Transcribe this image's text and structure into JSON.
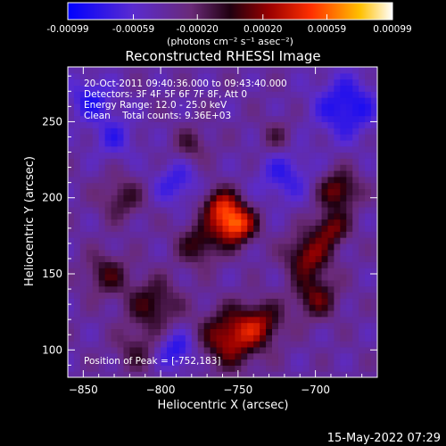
{
  "chart_data": {
    "type": "heatmap",
    "title": "Reconstructed RHESSI Image",
    "xlabel": "Heliocentric X (arcsec)",
    "ylabel": "Heliocentric Y (arcsec)",
    "xlim": [
      -860,
      -660
    ],
    "ylim": [
      82,
      286
    ],
    "x_ticks": [
      -850,
      -800,
      -750,
      -700
    ],
    "y_ticks": [
      100,
      150,
      200,
      250
    ],
    "colorbar": {
      "range": [
        -0.00099,
        0.00099
      ],
      "ticks": [
        "-0.00099",
        "-0.00059",
        "-0.00020",
        "0.00020",
        "0.00059",
        "0.00099"
      ],
      "colormap": "blue-purple-red-yellow-white",
      "units_label": "(photons cm⁻² s⁻¹ asec⁻²)"
    },
    "annotations": [
      "20-Oct-2011 09:40:36.000 to 09:43:40.000",
      "Detectors: 3F 4F 5F 6F 7F 8F, Att 0",
      "Energy Range: 12.0 - 25.0 keV",
      "Clean    Total counts: 9.36E+03"
    ],
    "peak_label": "Position of Peak = [-752,183]",
    "peak": [
      -752,
      183
    ],
    "sources": [
      {
        "x": -752,
        "y": 183,
        "sigma": 9,
        "amp": 0.00099
      },
      {
        "x": -762,
        "y": 196,
        "sigma": 8,
        "amp": 0.0006
      },
      {
        "x": -775,
        "y": 170,
        "sigma": 10,
        "amp": 0.00045
      },
      {
        "x": -705,
        "y": 162,
        "sigma": 10,
        "amp": 0.0006
      },
      {
        "x": -690,
        "y": 180,
        "sigma": 8,
        "amp": 0.00055
      },
      {
        "x": -685,
        "y": 205,
        "sigma": 9,
        "amp": 0.00058
      },
      {
        "x": -700,
        "y": 135,
        "sigma": 10,
        "amp": 0.0005
      },
      {
        "x": -755,
        "y": 108,
        "sigma": 13,
        "amp": 0.0007
      },
      {
        "x": -735,
        "y": 118,
        "sigma": 10,
        "amp": 0.0005
      },
      {
        "x": -805,
        "y": 130,
        "sigma": 12,
        "amp": 0.00045
      },
      {
        "x": -825,
        "y": 200,
        "sigma": 10,
        "amp": 0.00035
      },
      {
        "x": -835,
        "y": 150,
        "sigma": 10,
        "amp": 0.0004
      },
      {
        "x": -815,
        "y": 100,
        "sigma": 10,
        "amp": 0.0003
      },
      {
        "x": -780,
        "y": 235,
        "sigma": 8,
        "amp": 0.0003
      },
      {
        "x": -725,
        "y": 240,
        "sigma": 8,
        "amp": 0.00025
      },
      {
        "x": -790,
        "y": 210,
        "sigma": 10,
        "amp": -0.00035
      },
      {
        "x": -720,
        "y": 215,
        "sigma": 12,
        "amp": -0.00035
      },
      {
        "x": -680,
        "y": 260,
        "sigma": 14,
        "amp": -0.0005
      },
      {
        "x": -845,
        "y": 265,
        "sigma": 10,
        "amp": -0.0004
      },
      {
        "x": -790,
        "y": 100,
        "sigma": 9,
        "amp": -0.00045
      },
      {
        "x": -830,
        "y": 240,
        "sigma": 10,
        "amp": -0.0003
      }
    ]
  },
  "footer_timestamp": "15-May-2022 07:29"
}
